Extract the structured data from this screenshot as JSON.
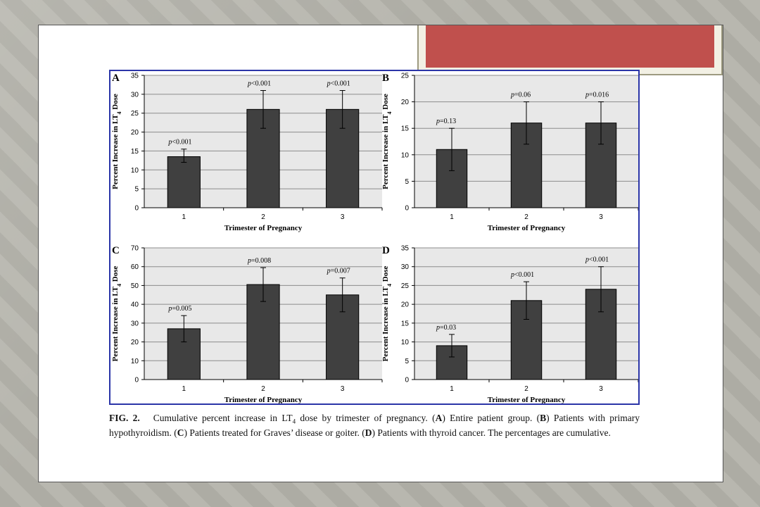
{
  "figure_caption": {
    "label": "FIG. 2.",
    "parts": [
      "Cumulative percent increase in LT",
      "4",
      " dose by trimester of pregnancy. (",
      "A",
      ") Entire patient group. (",
      "B",
      ") Patients with primary hypothyroidism. (",
      "C",
      ") Patients treated for Graves’ disease or goiter. (",
      "D",
      ") Patients with thyroid cancer. The percentages are cumulative."
    ]
  },
  "colors": {
    "bar": "#404040",
    "plot_bg": "#e8e8e8",
    "frame": "#2b35a8",
    "banner": "#c0504d"
  },
  "chart_data": [
    {
      "panel": "A",
      "type": "bar",
      "categories": [
        "1",
        "2",
        "3"
      ],
      "values": [
        13.5,
        26,
        26
      ],
      "error_low": [
        12,
        21,
        21
      ],
      "error_high": [
        15.5,
        31,
        31
      ],
      "p_labels": [
        "p<0.001",
        "p<0.001",
        "p<0.001"
      ],
      "xlabel": "Trimester of Pregnancy",
      "ylabel": "Percent Increase in LT4 Dose",
      "ylim": [
        0,
        35
      ],
      "yticks": [
        0,
        5,
        10,
        15,
        20,
        25,
        30,
        35
      ],
      "grid": true
    },
    {
      "panel": "B",
      "type": "bar",
      "categories": [
        "1",
        "2",
        "3"
      ],
      "values": [
        11,
        16,
        16
      ],
      "error_low": [
        7,
        12,
        12
      ],
      "error_high": [
        15,
        20,
        20
      ],
      "p_labels": [
        "p=0.13",
        "p=0.06",
        "p=0.016"
      ],
      "xlabel": "Trimester of Pregnancy",
      "ylabel": "Percent Increase in LT4 Dose",
      "ylim": [
        0,
        25
      ],
      "yticks": [
        0,
        5,
        10,
        15,
        20,
        25
      ],
      "grid": true
    },
    {
      "panel": "C",
      "type": "bar",
      "categories": [
        "1",
        "2",
        "3"
      ],
      "values": [
        27,
        50.5,
        45
      ],
      "error_low": [
        20,
        41.5,
        36
      ],
      "error_high": [
        34,
        59.5,
        54
      ],
      "p_labels": [
        "p=0.005",
        "p=0.008",
        "p=0.007"
      ],
      "xlabel": "Trimester of Pregnancy",
      "ylabel": "Percent Increase in LT4 Dose",
      "ylim": [
        0,
        70
      ],
      "yticks": [
        0,
        10,
        20,
        30,
        40,
        50,
        60,
        70
      ],
      "grid": true
    },
    {
      "panel": "D",
      "type": "bar",
      "categories": [
        "1",
        "2",
        "3"
      ],
      "values": [
        9,
        21,
        24
      ],
      "error_low": [
        6,
        16,
        18
      ],
      "error_high": [
        12,
        26,
        30
      ],
      "p_labels": [
        "p=0.03",
        "p<0.001",
        "p<0.001"
      ],
      "xlabel": "Trimester of Pregnancy",
      "ylabel": "Percent Increase in LT4 Dose",
      "ylim": [
        0,
        35
      ],
      "yticks": [
        0,
        5,
        10,
        15,
        20,
        25,
        30,
        35
      ],
      "grid": true
    }
  ]
}
